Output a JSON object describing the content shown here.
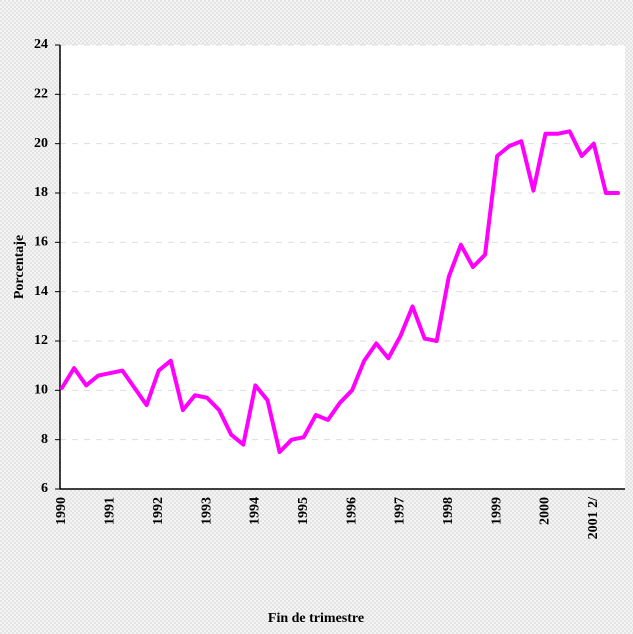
{
  "chart_data": {
    "type": "line",
    "y_label": "Porcentaje",
    "x_label": "Fin de trimestre",
    "categories": [
      "1990",
      null,
      null,
      null,
      "1991",
      null,
      null,
      null,
      "1992",
      null,
      null,
      null,
      "1993",
      null,
      null,
      null,
      "1994",
      null,
      null,
      null,
      "1995",
      null,
      null,
      null,
      "1996",
      null,
      null,
      null,
      "1997",
      null,
      null,
      null,
      "1998",
      null,
      null,
      null,
      "1999",
      null,
      null,
      null,
      "2000",
      null,
      null,
      null,
      "2001 2/",
      null,
      null
    ],
    "series": [
      {
        "name": "Porcentaje",
        "color": "#ff00ff",
        "values": [
          10.1,
          10.9,
          10.2,
          10.6,
          10.7,
          10.8,
          10.1,
          9.4,
          10.8,
          11.2,
          9.2,
          9.8,
          9.7,
          9.2,
          8.2,
          7.8,
          10.2,
          9.6,
          7.5,
          8.0,
          8.1,
          9.0,
          8.8,
          9.5,
          10.0,
          11.2,
          11.9,
          11.3,
          12.2,
          13.4,
          12.1,
          12.0,
          14.6,
          15.9,
          15.0,
          15.5,
          19.5,
          19.9,
          20.1,
          18.1,
          20.4,
          20.4,
          20.5,
          19.5,
          20.0,
          18.0,
          18.0
        ]
      }
    ],
    "ylim": [
      6,
      24
    ],
    "yticks": [
      6,
      8,
      10,
      12,
      14,
      16,
      18,
      20,
      22,
      24
    ],
    "grid": true
  }
}
